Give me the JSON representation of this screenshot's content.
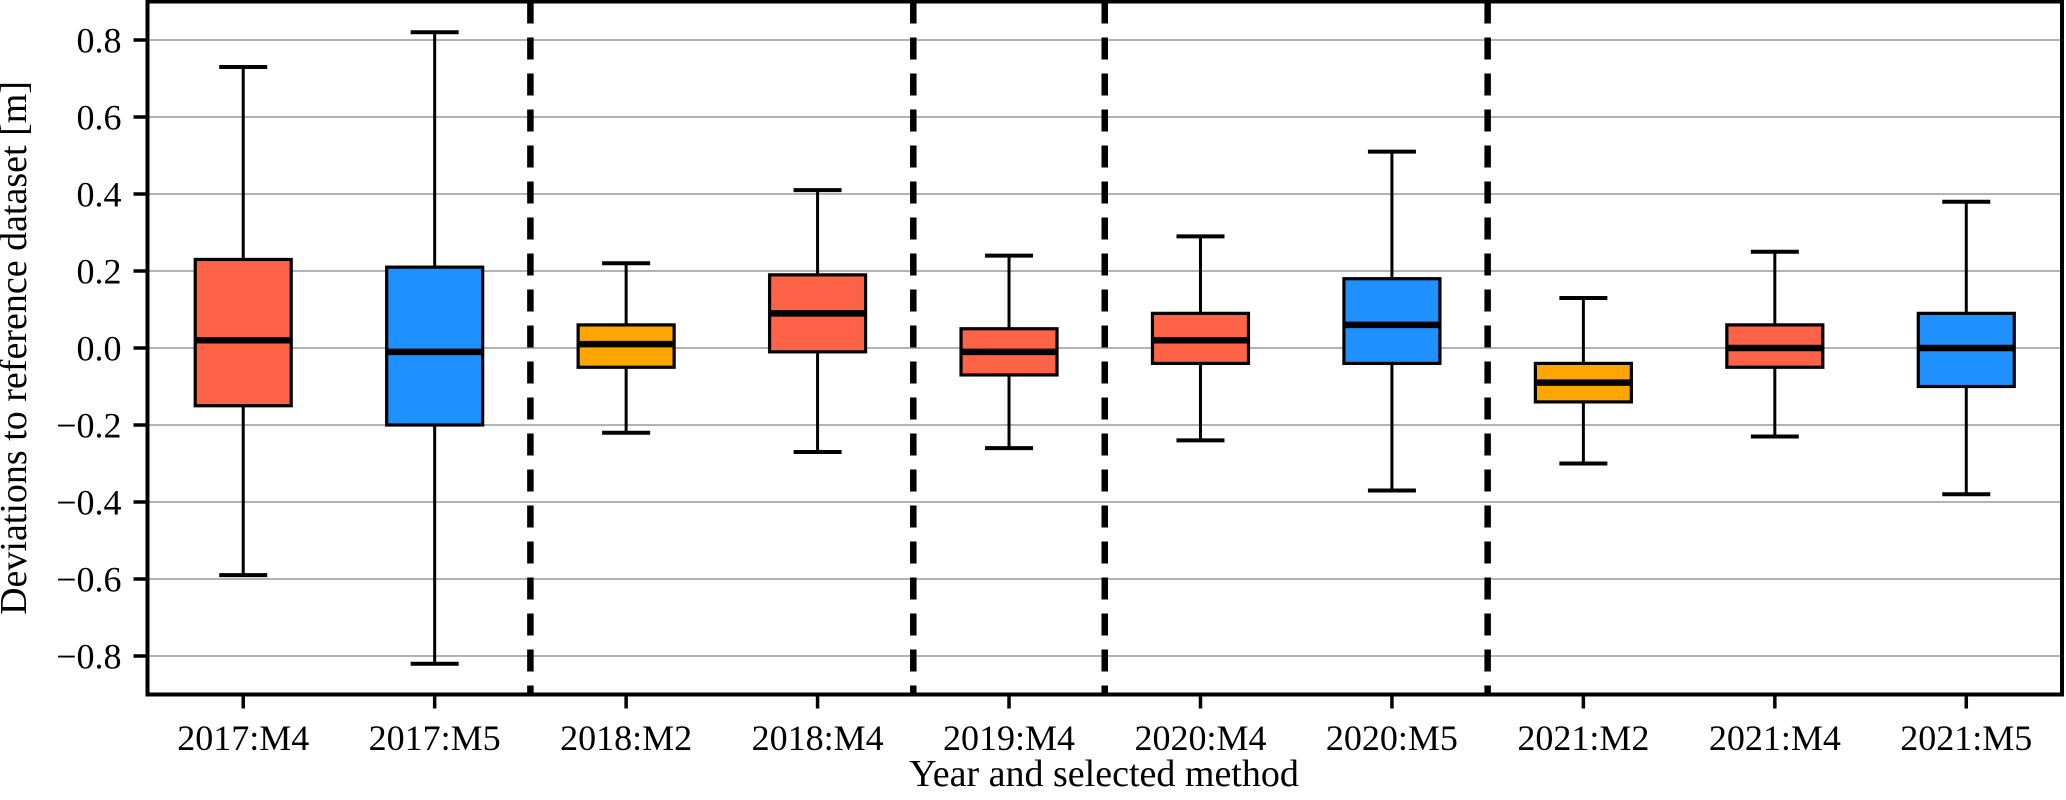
{
  "chart_data": {
    "type": "box",
    "title": "",
    "xlabel": "Year and selected method",
    "ylabel": "Deviations to reference dataset [m]",
    "ylim": [
      -0.9,
      0.9
    ],
    "ytick_values": [
      0.8,
      0.6,
      0.4,
      0.2,
      0.0,
      -0.2,
      -0.4,
      -0.6,
      -0.8
    ],
    "ytick_labels": [
      "0.8",
      "0.6",
      "0.4",
      "0.2",
      "0.0",
      "−0.2",
      "−0.4",
      "−0.6",
      "−0.8"
    ],
    "grid": "horizontal",
    "legend_position": "none",
    "categories": [
      "2017:M4",
      "2017:M5",
      "2018:M2",
      "2018:M4",
      "2019:M4",
      "2020:M4",
      "2020:M5",
      "2021:M2",
      "2021:M4",
      "2021:M5"
    ],
    "year_groups": [
      [
        "2017:M4",
        "2017:M5"
      ],
      [
        "2018:M2",
        "2018:M4"
      ],
      [
        "2019:M4"
      ],
      [
        "2020:M4",
        "2020:M5"
      ],
      [
        "2021:M2",
        "2021:M4",
        "2021:M5"
      ]
    ],
    "separator_boundaries": [
      2,
      4,
      5,
      7
    ],
    "separator_style": "dashed",
    "boxes": [
      {
        "label": "2017:M4",
        "method": "M4",
        "whislo": -0.59,
        "q1": -0.15,
        "med": 0.02,
        "q3": 0.23,
        "whishi": 0.73
      },
      {
        "label": "2017:M5",
        "method": "M5",
        "whislo": -0.82,
        "q1": -0.2,
        "med": -0.01,
        "q3": 0.21,
        "whishi": 0.82
      },
      {
        "label": "2018:M2",
        "method": "M2",
        "whislo": -0.22,
        "q1": -0.05,
        "med": 0.01,
        "q3": 0.06,
        "whishi": 0.22
      },
      {
        "label": "2018:M4",
        "method": "M4",
        "whislo": -0.27,
        "q1": -0.01,
        "med": 0.09,
        "q3": 0.19,
        "whishi": 0.41
      },
      {
        "label": "2019:M4",
        "method": "M4",
        "whislo": -0.26,
        "q1": -0.07,
        "med": -0.01,
        "q3": 0.05,
        "whishi": 0.24
      },
      {
        "label": "2020:M4",
        "method": "M4",
        "whislo": -0.24,
        "q1": -0.04,
        "med": 0.02,
        "q3": 0.09,
        "whishi": 0.29
      },
      {
        "label": "2020:M5",
        "method": "M5",
        "whislo": -0.37,
        "q1": -0.04,
        "med": 0.06,
        "q3": 0.18,
        "whishi": 0.51
      },
      {
        "label": "2021:M2",
        "method": "M2",
        "whislo": -0.3,
        "q1": -0.14,
        "med": -0.09,
        "q3": -0.04,
        "whishi": 0.13
      },
      {
        "label": "2021:M4",
        "method": "M4",
        "whislo": -0.23,
        "q1": -0.05,
        "med": 0.0,
        "q3": 0.06,
        "whishi": 0.25
      },
      {
        "label": "2021:M5",
        "method": "M5",
        "whislo": -0.38,
        "q1": -0.1,
        "med": 0.0,
        "q3": 0.09,
        "whishi": 0.38
      }
    ],
    "colors": {
      "M2": "#FFA500",
      "M4": "#FF6347",
      "M5": "#1E90FF",
      "box_edge": "#000000",
      "median": "#000000",
      "whisker": "#000000",
      "grid": "#B3B3B3",
      "separator": "#000000",
      "frame": "#000000",
      "background": "#FFFFFF"
    }
  }
}
